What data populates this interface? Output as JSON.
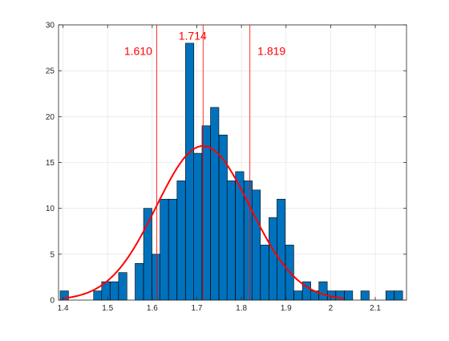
{
  "chart_data": {
    "type": "bar",
    "title": "",
    "xlabel": "",
    "ylabel": "",
    "xlim": [
      1.39,
      2.17
    ],
    "ylim": [
      0,
      30
    ],
    "grid": true,
    "bin_width": 0.0187,
    "x_ticks": [
      {
        "value": 1.4,
        "label": "1.4"
      },
      {
        "value": 1.5,
        "label": "1.5"
      },
      {
        "value": 1.6,
        "label": "1.6"
      },
      {
        "value": 1.7,
        "label": "1.7"
      },
      {
        "value": 1.8,
        "label": "1.8"
      },
      {
        "value": 1.9,
        "label": "1.9"
      },
      {
        "value": 2.0,
        "label": "2"
      },
      {
        "value": 2.1,
        "label": "2.1"
      }
    ],
    "y_ticks": [
      {
        "value": 0,
        "label": "0"
      },
      {
        "value": 5,
        "label": "5"
      },
      {
        "value": 10,
        "label": "10"
      },
      {
        "value": 15,
        "label": "15"
      },
      {
        "value": 20,
        "label": "20"
      },
      {
        "value": 25,
        "label": "25"
      },
      {
        "value": 30,
        "label": "30"
      }
    ],
    "bins": [
      {
        "x": 1.403,
        "value": 1
      },
      {
        "x": 1.478,
        "value": 1
      },
      {
        "x": 1.496,
        "value": 2
      },
      {
        "x": 1.515,
        "value": 2
      },
      {
        "x": 1.534,
        "value": 3
      },
      {
        "x": 1.571,
        "value": 4
      },
      {
        "x": 1.59,
        "value": 10
      },
      {
        "x": 1.609,
        "value": 5
      },
      {
        "x": 1.627,
        "value": 11
      },
      {
        "x": 1.646,
        "value": 11
      },
      {
        "x": 1.665,
        "value": 13
      },
      {
        "x": 1.684,
        "value": 28
      },
      {
        "x": 1.702,
        "value": 16
      },
      {
        "x": 1.721,
        "value": 19
      },
      {
        "x": 1.74,
        "value": 21
      },
      {
        "x": 1.759,
        "value": 18
      },
      {
        "x": 1.777,
        "value": 13
      },
      {
        "x": 1.796,
        "value": 14
      },
      {
        "x": 1.815,
        "value": 13
      },
      {
        "x": 1.833,
        "value": 12
      },
      {
        "x": 1.852,
        "value": 6
      },
      {
        "x": 1.871,
        "value": 9
      },
      {
        "x": 1.889,
        "value": 11
      },
      {
        "x": 1.908,
        "value": 6
      },
      {
        "x": 1.927,
        "value": 1
      },
      {
        "x": 1.946,
        "value": 2
      },
      {
        "x": 1.964,
        "value": 1
      },
      {
        "x": 1.983,
        "value": 2
      },
      {
        "x": 2.002,
        "value": 1
      },
      {
        "x": 2.021,
        "value": 1
      },
      {
        "x": 2.04,
        "value": 1
      },
      {
        "x": 2.077,
        "value": 1
      },
      {
        "x": 2.133,
        "value": 1
      },
      {
        "x": 2.152,
        "value": 1
      }
    ],
    "fit_curve": {
      "type": "normal",
      "mean": 1.714,
      "sd": 0.105,
      "peak": 16.8,
      "x_range": [
        1.4,
        2.03
      ],
      "color": "#ff0000"
    },
    "markers": [
      {
        "x": 1.61,
        "label": "1.610"
      },
      {
        "x": 1.714,
        "label": "1.714"
      },
      {
        "x": 1.819,
        "label": "1.819"
      }
    ],
    "colors": {
      "bar_fill": "#0072bd",
      "bar_edge": "#000000",
      "fit": "#ff0000",
      "marker": "#ff0000",
      "axes": "#262626",
      "grid": "#dfdfdf"
    }
  }
}
